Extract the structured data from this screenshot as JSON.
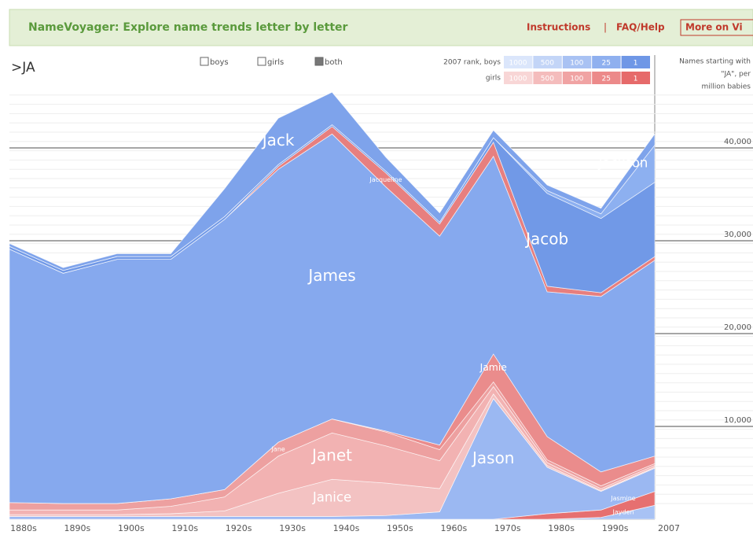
{
  "header": {
    "title": "NameVoyager: Explore name trends letter by letter",
    "links": [
      "Instructions",
      "|",
      "FAQ/Help",
      "More on Vi"
    ]
  },
  "controls": {
    "query": ">JA",
    "options": [
      "boys",
      "girls",
      "both"
    ],
    "selected": "both"
  },
  "rank_legend": {
    "boys_label": "2007 rank, boys",
    "girls_label": "girls",
    "ranks": [
      "1000",
      "500",
      "100",
      "25",
      "1"
    ],
    "boys_colors": [
      "#dbe6fb",
      "#c3d5f7",
      "#a9c2f3",
      "#8fb0ef",
      "#6f97e6"
    ],
    "girls_colors": [
      "#f8d6d6",
      "#f4bcbc",
      "#f0a3a3",
      "#ec8a8a",
      "#e66a6a"
    ]
  },
  "chart_data": {
    "type": "stacked_area",
    "y_axis_title": [
      "Names starting with",
      "\"JA\", per",
      "million babies"
    ],
    "categories": [
      "1880s",
      "1890s",
      "1900s",
      "1910s",
      "1920s",
      "1930s",
      "1940s",
      "1950s",
      "1960s",
      "1970s",
      "1980s",
      "1990s",
      "2007"
    ],
    "ylim": [
      0,
      50000
    ],
    "yticks": [
      {
        "value": 10000,
        "label": "10,000"
      },
      {
        "value": 20000,
        "label": "20,000"
      },
      {
        "value": 30000,
        "label": "30,000"
      },
      {
        "value": 40000,
        "label": "40,000"
      }
    ],
    "grid": true,
    "series": [
      {
        "name": "Jayden",
        "color": "#a8c2f4",
        "values": [
          0,
          0,
          0,
          0,
          0,
          0,
          0,
          0,
          0,
          0,
          0,
          200,
          1500
        ]
      },
      {
        "name": "Jasmine",
        "color": "#e67070",
        "values": [
          0,
          0,
          0,
          0,
          0,
          0,
          0,
          0,
          0,
          0,
          600,
          800,
          1500
        ]
      },
      {
        "name": "Jason",
        "color": "#9bb8f2",
        "values": [
          300,
          300,
          300,
          300,
          300,
          300,
          300,
          400,
          800,
          13000,
          5000,
          2000,
          2500
        ]
      },
      {
        "name": "Janice",
        "color": "#f3c2c2",
        "values": [
          200,
          200,
          200,
          300,
          600,
          2500,
          4000,
          3500,
          2500,
          500,
          200,
          100,
          100
        ]
      },
      {
        "name": "Janet",
        "color": "#f2b2b2",
        "values": [
          500,
          500,
          500,
          800,
          1500,
          4000,
          5000,
          4000,
          3000,
          800,
          300,
          200,
          200
        ]
      },
      {
        "name": "Jane",
        "color": "#eda0a0",
        "values": [
          800,
          700,
          700,
          800,
          800,
          1500,
          1500,
          1500,
          1200,
          500,
          300,
          300,
          200
        ]
      },
      {
        "name": "Jamie",
        "color": "#ea8c8c",
        "values": [
          0,
          0,
          0,
          0,
          0,
          0,
          0,
          100,
          500,
          3000,
          2500,
          1500,
          800
        ]
      },
      {
        "name": "James",
        "color": "#86a9ee",
        "values": [
          27300,
          24800,
          26300,
          25800,
          29100,
          29400,
          30700,
          26300,
          22500,
          21300,
          15600,
          18900,
          21100
        ]
      },
      {
        "name": "Jacqueline",
        "color": "#e77f7f",
        "values": [
          0,
          0,
          0,
          0,
          0,
          300,
          800,
          1500,
          1300,
          1500,
          600,
          400,
          400
        ]
      },
      {
        "name": "Jacob",
        "color": "#7199e7",
        "values": [
          300,
          300,
          300,
          300,
          300,
          200,
          200,
          200,
          200,
          500,
          10000,
          8000,
          8000
        ]
      },
      {
        "name": "Jackson",
        "color": "#8db0f0",
        "values": [
          0,
          0,
          0,
          0,
          0,
          0,
          0,
          0,
          0,
          0,
          300,
          500,
          4000
        ]
      },
      {
        "name": "Jack",
        "color": "#7ea3eb",
        "values": [
          300,
          300,
          300,
          300,
          3000,
          5000,
          3500,
          1500,
          1000,
          800,
          600,
          600,
          1200
        ]
      }
    ]
  }
}
